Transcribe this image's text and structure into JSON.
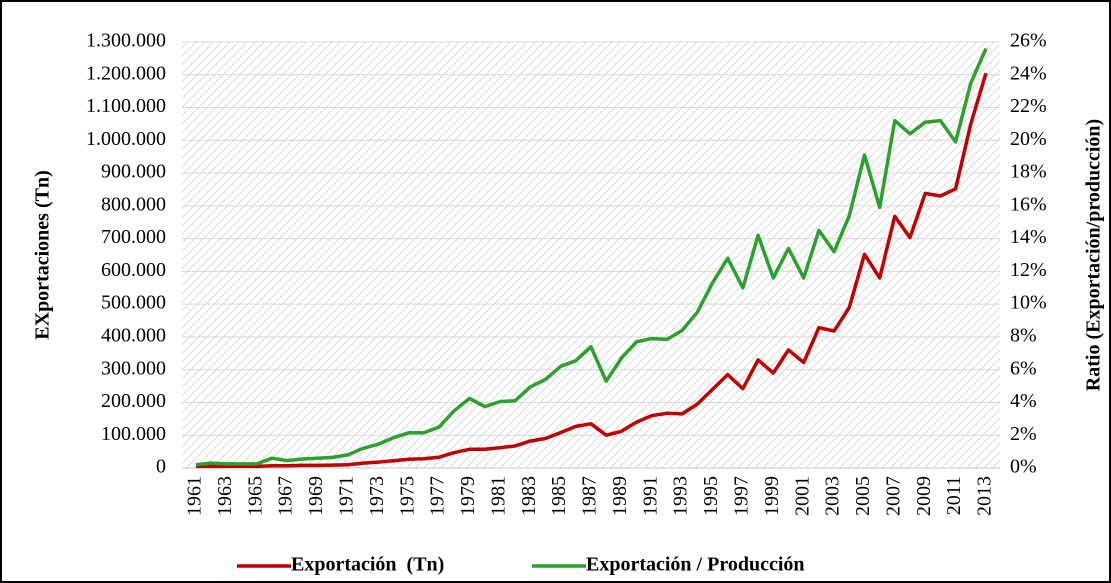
{
  "chart_data": {
    "type": "line",
    "categories": [
      "1961",
      null,
      "1963",
      null,
      "1965",
      null,
      "1967",
      null,
      "1969",
      null,
      "1971",
      null,
      "1973",
      null,
      "1975",
      null,
      "1977",
      null,
      "1979",
      null,
      "1981",
      null,
      "1983",
      null,
      "1985",
      null,
      "1987",
      null,
      "1989",
      null,
      "1991",
      null,
      "1993",
      null,
      "1995",
      null,
      "1997",
      null,
      "1999",
      null,
      "2001",
      null,
      "2003",
      null,
      "2005",
      null,
      "2007",
      null,
      "2009",
      null,
      "2011",
      null,
      "2013"
    ],
    "series": [
      {
        "name": "Exportación  (Tn)",
        "color": "#c00000",
        "values": [
          5000,
          5000,
          5000,
          5000,
          5000,
          7000,
          7000,
          8000,
          8000,
          9000,
          10000,
          15000,
          18000,
          22000,
          27000,
          28000,
          33000,
          47000,
          57000,
          57000,
          62000,
          67000,
          82000,
          90000,
          108000,
          127000,
          135000,
          100000,
          112000,
          140000,
          160000,
          167000,
          165000,
          195000,
          240000,
          285000,
          242000,
          330000,
          290000,
          360000,
          322000,
          428000,
          418000,
          490000,
          652000,
          580000,
          768000,
          703000,
          838000,
          830000,
          852000,
          1050000,
          1205000
        ]
      },
      {
        "name": "Exportación / Producción",
        "color": "#2ca02c",
        "axis": "y2",
        "values": [
          0.2,
          0.3,
          0.25,
          0.25,
          0.25,
          0.6,
          0.45,
          0.55,
          0.6,
          0.65,
          0.8,
          1.2,
          1.45,
          1.85,
          2.15,
          2.15,
          2.5,
          3.5,
          4.25,
          3.75,
          4.05,
          4.1,
          4.95,
          5.4,
          6.2,
          6.55,
          7.4,
          5.3,
          6.7,
          7.7,
          7.9,
          7.85,
          8.4,
          9.5,
          11.3,
          12.8,
          11.0,
          14.2,
          11.6,
          13.4,
          11.6,
          14.5,
          13.2,
          15.4,
          19.1,
          15.9,
          21.2,
          20.4,
          21.1,
          21.2,
          19.9,
          23.5,
          25.6
        ]
      }
    ],
    "ylabel": "EXportaciones (Tn)",
    "y2label": "Ratio (Exportación/producción)",
    "ylim": [
      0,
      1300000
    ],
    "yticks": [
      0,
      {
        "value": 100000,
        "label": "100.000"
      },
      {
        "value": 200000,
        "label": "200.000"
      },
      {
        "value": 300000,
        "label": "300.000"
      },
      {
        "value": 400000,
        "label": "400.000"
      },
      {
        "value": 500000,
        "label": "500.000"
      },
      {
        "value": 600000,
        "label": "600.000"
      },
      {
        "value": 700000,
        "label": "700.000"
      },
      {
        "value": 800000,
        "label": "800.000"
      },
      {
        "value": 900000,
        "label": "900.000"
      },
      {
        "value": 1000000,
        "label": "1.000.000"
      },
      {
        "value": 1100000,
        "label": "1.100.000"
      },
      {
        "value": 1200000,
        "label": "1.200.000"
      },
      {
        "value": 1300000,
        "label": "1.300.000"
      }
    ],
    "y2lim": [
      0,
      26
    ],
    "y2ticks": [
      {
        "value": 0,
        "label": "0%"
      },
      {
        "value": 2,
        "label": "2%"
      },
      {
        "value": 4,
        "label": "4%"
      },
      {
        "value": 6,
        "label": "6%"
      },
      {
        "value": 8,
        "label": "8%"
      },
      {
        "value": 10,
        "label": "10%"
      },
      {
        "value": 12,
        "label": "12%"
      },
      {
        "value": 14,
        "label": "14%"
      },
      {
        "value": 16,
        "label": "16%"
      },
      {
        "value": 18,
        "label": "18%"
      },
      {
        "value": 20,
        "label": "20%"
      },
      {
        "value": 22,
        "label": "22%"
      },
      {
        "value": 24,
        "label": "24%"
      },
      {
        "value": 26,
        "label": "26%"
      }
    ],
    "grid": true,
    "legend": "bottom"
  }
}
